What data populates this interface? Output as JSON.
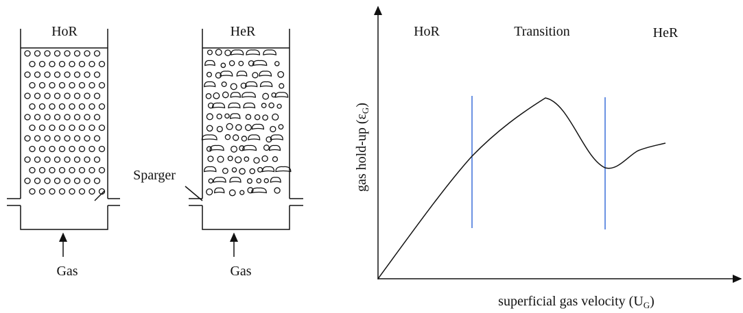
{
  "columns": [
    {
      "label": "HoR",
      "gas": "Gas"
    },
    {
      "label": "HeR",
      "gas": "Gas"
    }
  ],
  "sparger": "Sparger",
  "graph": {
    "regions": [
      "HoR",
      "Transition",
      "HeR"
    ],
    "y_label": {
      "text": "gas hold-up (ε",
      "sub": "G",
      "end": ")"
    },
    "x_label": {
      "text": "superficial gas velocity (U",
      "sub": "G",
      "end": ")"
    }
  }
}
